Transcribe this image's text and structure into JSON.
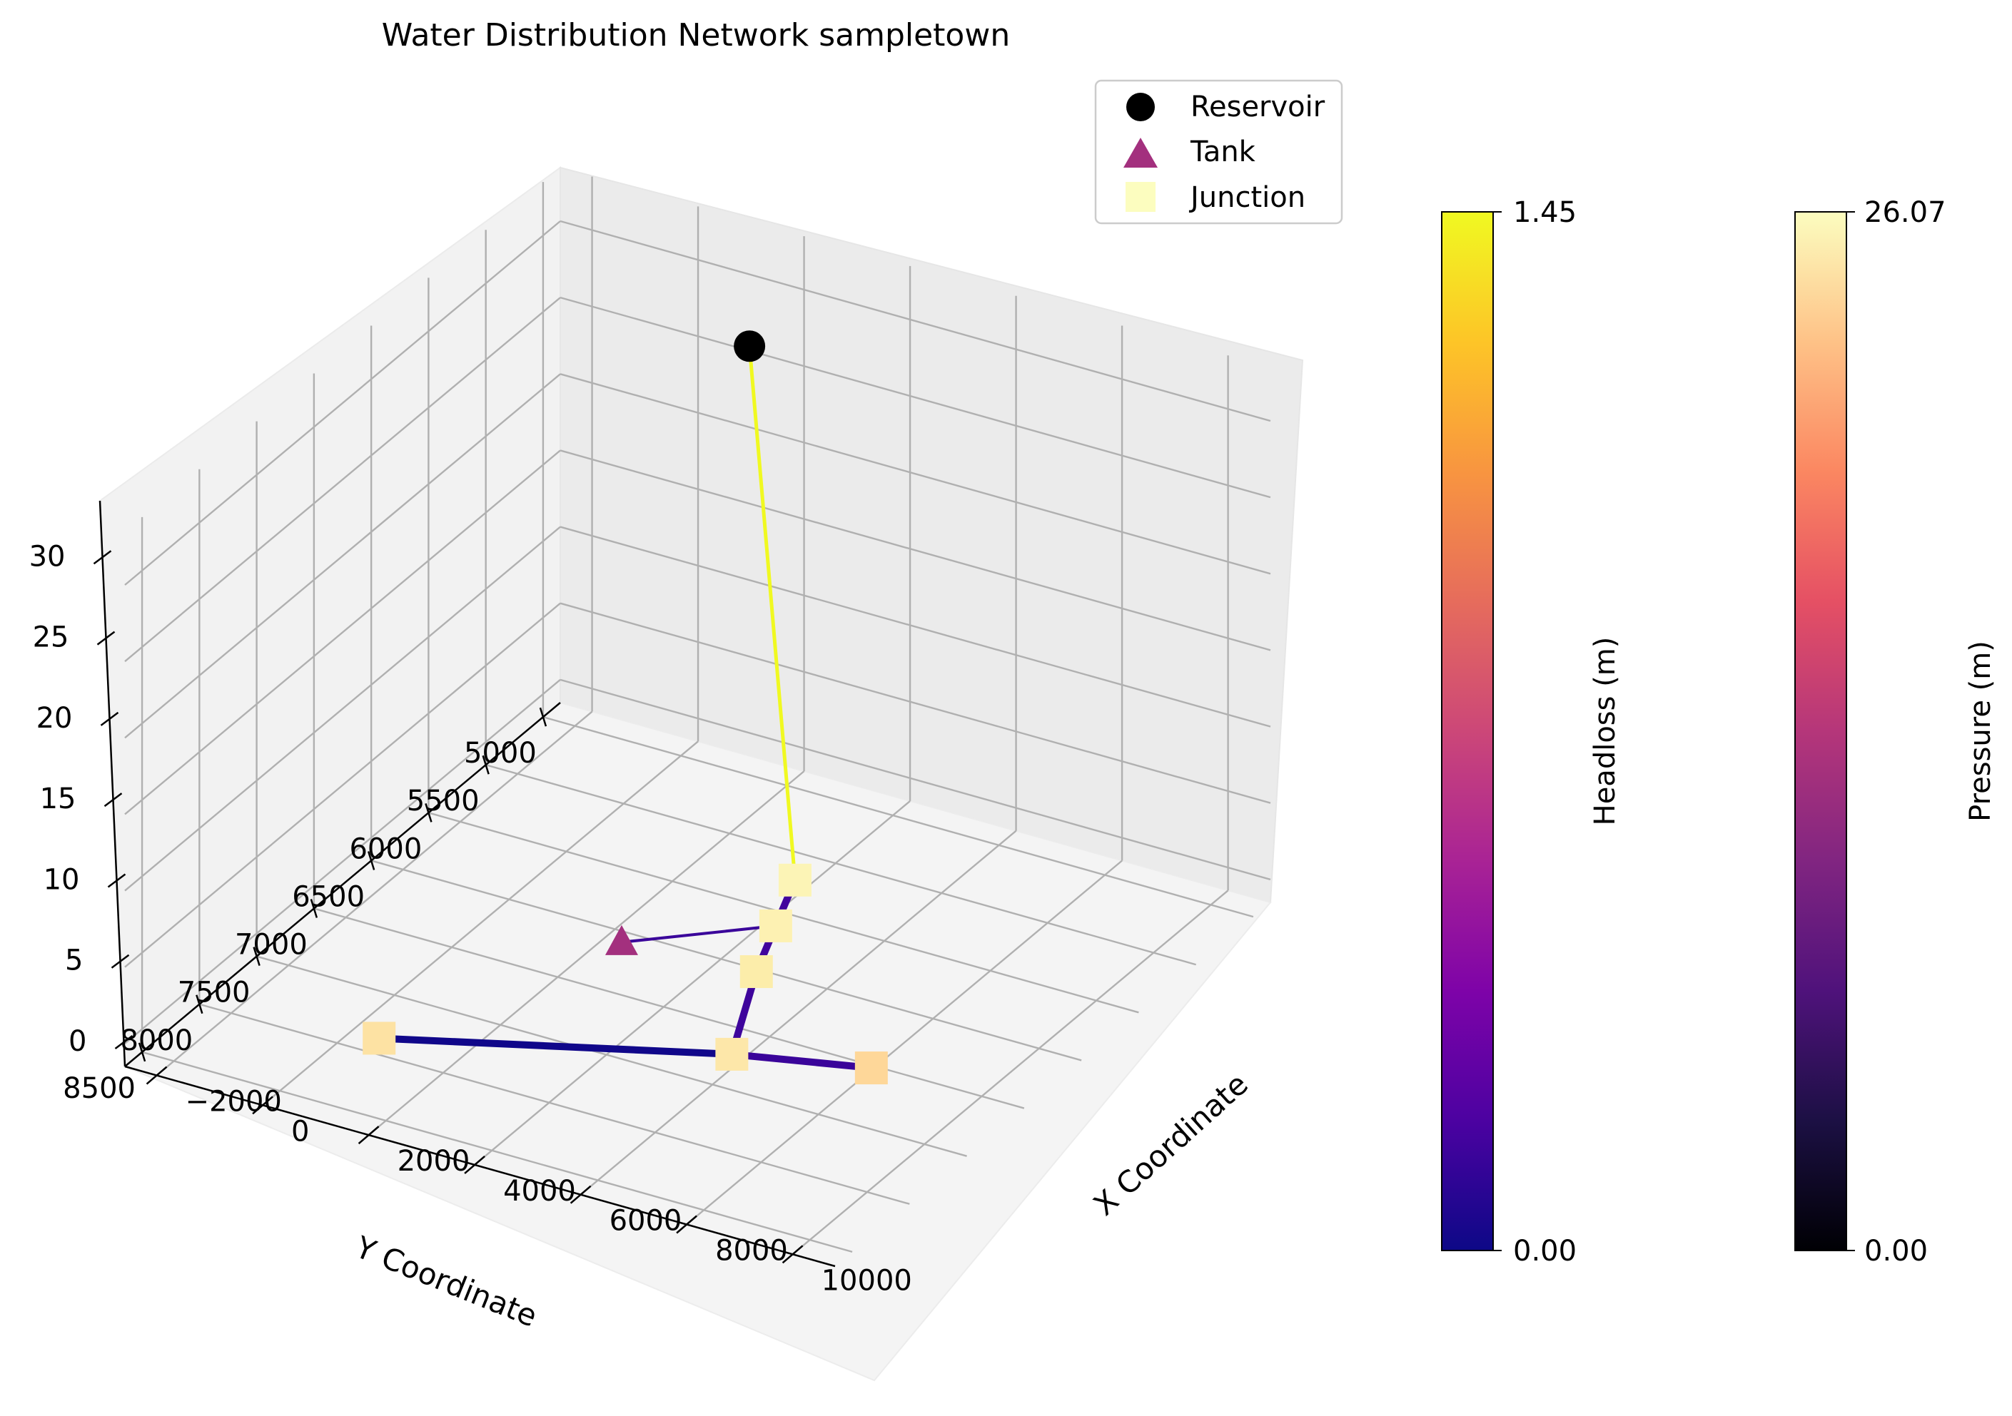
{
  "chart_data": {
    "type": "scatter",
    "title": "Water Distribution Network sampletown",
    "xlabel": "X Coordinate",
    "ylabel": "Y Coordinate",
    "zlabel": "",
    "x_ticks": [
      "−2000",
      "0",
      "2000",
      "4000",
      "6000",
      "8000",
      "10000"
    ],
    "y_ticks": [
      "5000",
      "5500",
      "6000",
      "6500",
      "7000",
      "7500",
      "8000",
      "8500"
    ],
    "z_ticks": [
      "0",
      "5",
      "10",
      "15",
      "20",
      "25",
      "30"
    ],
    "legend": {
      "placement": "top-right",
      "entries": [
        {
          "name": "Reservoir",
          "marker": "circle",
          "color": "#000000"
        },
        {
          "name": "Tank",
          "marker": "triangle",
          "color": "#a3307e"
        },
        {
          "name": "Junction",
          "marker": "square",
          "color": "#fcfdbf"
        }
      ]
    },
    "colorbars": [
      {
        "label": "Headloss (m)",
        "colormap": "plasma",
        "min_label": "0.00",
        "max_label": "1.45",
        "min": 0.0,
        "max": 1.45
      },
      {
        "label": "Pressure (m)",
        "colormap": "magma",
        "min_label": "0.00",
        "max_label": "26.07",
        "min": 0.0,
        "max": 26.07
      }
    ],
    "nodes": [
      {
        "id": "R",
        "type": "Reservoir",
        "x": 2700,
        "y": 5650,
        "z": 32,
        "color": "#000000"
      },
      {
        "id": "T",
        "type": "Tank",
        "x": 5800,
        "y": 8200,
        "z": 12,
        "color": "#a3307e"
      },
      {
        "id": "J1",
        "type": "Junction",
        "x": 4100,
        "y": 5900,
        "z": 0,
        "color": "#fcf4b6"
      },
      {
        "id": "J2",
        "type": "Junction",
        "x": 4600,
        "y": 6300,
        "z": 0,
        "color": "#fdf1b2"
      },
      {
        "id": "J3",
        "type": "Junction",
        "x": 5100,
        "y": 6700,
        "z": 0,
        "color": "#fcedaa"
      },
      {
        "id": "J4",
        "type": "Junction",
        "x": 6150,
        "y": 7400,
        "z": 0,
        "color": "#fde7a9"
      },
      {
        "id": "J5",
        "type": "Junction",
        "x": 8350,
        "y": 7200,
        "z": 0,
        "color": "#fed799"
      },
      {
        "id": "J6",
        "type": "Junction",
        "x": 900,
        "y": 8050,
        "z": 0,
        "color": "#fde2a3"
      }
    ],
    "links": [
      {
        "from": "R",
        "to": "J1",
        "headloss": 1.45,
        "color": "#f0f921"
      },
      {
        "from": "J1",
        "to": "J2",
        "headloss": 0.25,
        "color": "#41049d"
      },
      {
        "from": "J2",
        "to": "J3",
        "headloss": 0.22,
        "color": "#41049d"
      },
      {
        "from": "J3",
        "to": "J4",
        "headloss": 0.2,
        "color": "#3e049c"
      },
      {
        "from": "J4",
        "to": "J5",
        "headloss": 0.17,
        "color": "#3a049a"
      },
      {
        "from": "J4",
        "to": "J6",
        "headloss": 0.02,
        "color": "#10078a"
      },
      {
        "from": "J2",
        "to": "T",
        "headloss": 0.15,
        "color": "#3a049a"
      }
    ]
  }
}
